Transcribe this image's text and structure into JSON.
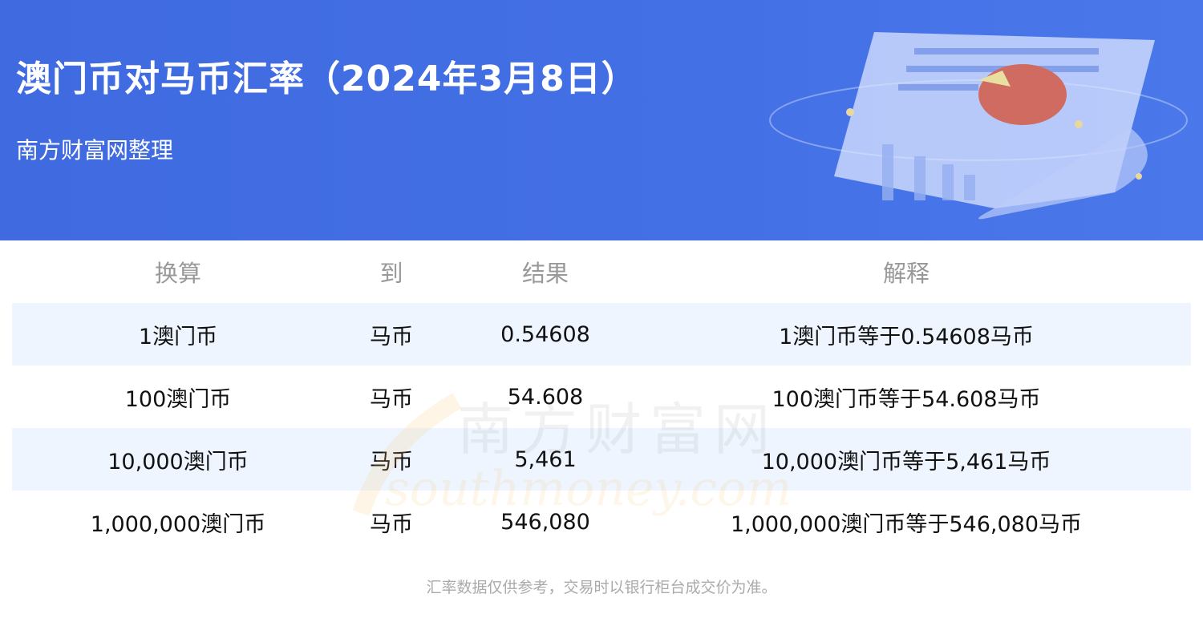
{
  "header": {
    "title": "澳门币对马币汇率（2024年3月8日）",
    "subtitle": "南方财富网整理",
    "background_color": "#4169e1"
  },
  "table": {
    "columns": [
      "换算",
      "到",
      "结果",
      "解释"
    ],
    "rows": [
      {
        "from": "1澳门币",
        "to": "马币",
        "result": "0.54608",
        "explanation": "1澳门币等于0.54608马币"
      },
      {
        "from": "100澳门币",
        "to": "马币",
        "result": "54.608",
        "explanation": "100澳门币等于54.608马币"
      },
      {
        "from": "10,000澳门币",
        "to": "马币",
        "result": "5,461",
        "explanation": "10,000澳门币等于5,461马币"
      },
      {
        "from": "1,000,000澳门币",
        "to": "马币",
        "result": "546,080",
        "explanation": "1,000,000澳门币等于546,080马币"
      }
    ],
    "alt_row_color": "#eef5fe"
  },
  "watermark": {
    "cn": "南方财富网",
    "en": "southmoney.com"
  },
  "footer": {
    "note": "汇率数据仅供参考，交易时以银行柜台成交价为准。"
  }
}
